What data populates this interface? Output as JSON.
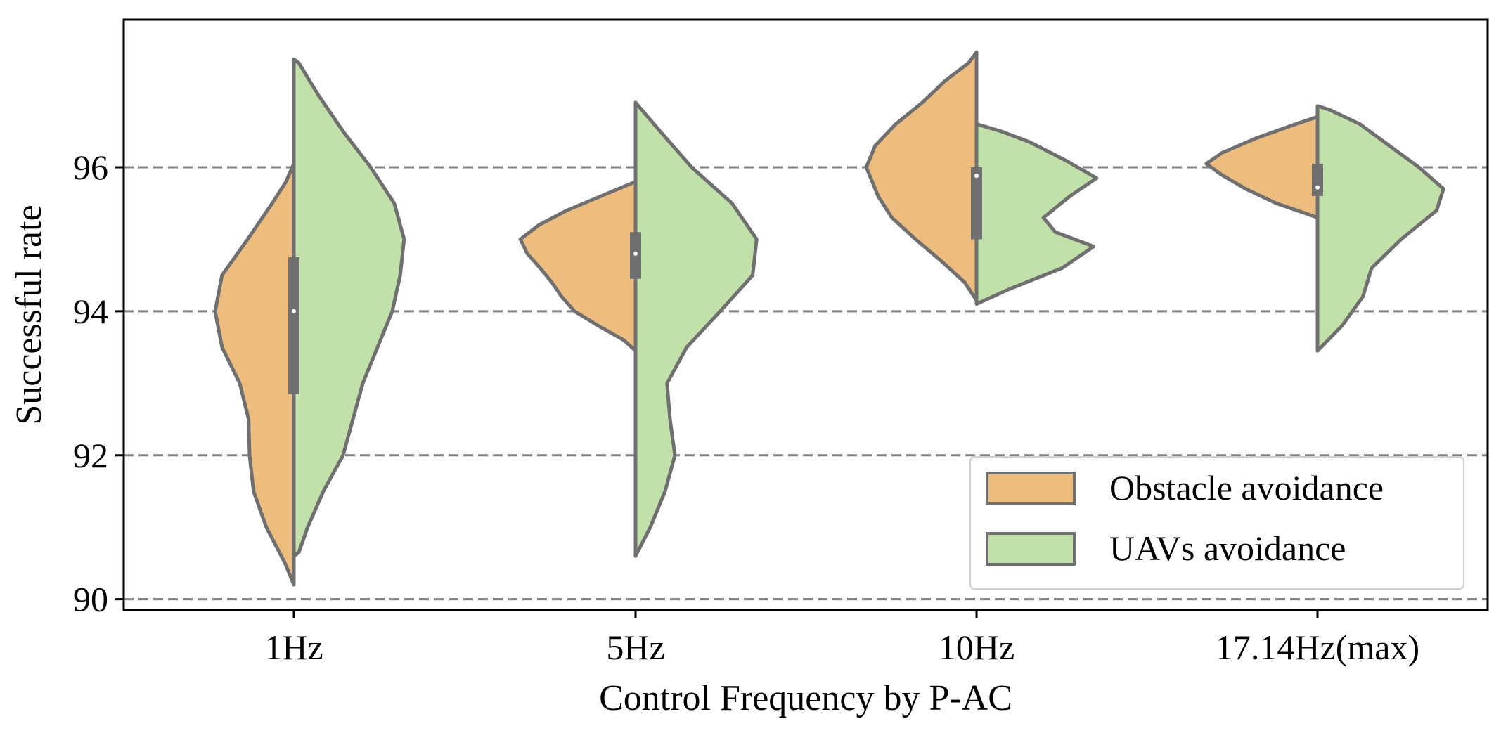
{
  "chart_data": {
    "type": "violin",
    "split": true,
    "title": "",
    "xlabel": "Control Frequency by P-AC",
    "ylabel": "Successful rate",
    "ylim": [
      89.85,
      98.05
    ],
    "yticks": [
      90,
      92,
      94,
      96
    ],
    "grid": "y-dashed",
    "categories": [
      "1Hz",
      "5Hz",
      "10Hz",
      "17.14Hz(max)"
    ],
    "series": [
      {
        "name": "Obstacle avoidance",
        "color": "#EDBD80",
        "side": "left",
        "violins": [
          {
            "min": 90.2,
            "max": 96.05,
            "density": [
              [
                90.2,
                0.0
              ],
              [
                90.5,
                0.09
              ],
              [
                91.0,
                0.28
              ],
              [
                91.5,
                0.41
              ],
              [
                92.0,
                0.45
              ],
              [
                92.5,
                0.46
              ],
              [
                93.0,
                0.55
              ],
              [
                93.5,
                0.73
              ],
              [
                94.0,
                0.8
              ],
              [
                94.5,
                0.73
              ],
              [
                95.0,
                0.47
              ],
              [
                95.5,
                0.22
              ],
              [
                95.8,
                0.08
              ],
              [
                96.05,
                0.0
              ]
            ]
          },
          {
            "min": 93.45,
            "max": 95.8,
            "density": [
              [
                93.45,
                0.0
              ],
              [
                93.6,
                0.12
              ],
              [
                93.8,
                0.38
              ],
              [
                94.0,
                0.62
              ],
              [
                94.2,
                0.75
              ],
              [
                94.4,
                0.85
              ],
              [
                94.6,
                0.97
              ],
              [
                94.8,
                1.1
              ],
              [
                95.0,
                1.17
              ],
              [
                95.2,
                0.98
              ],
              [
                95.4,
                0.7
              ],
              [
                95.6,
                0.35
              ],
              [
                95.8,
                0.0
              ]
            ]
          },
          {
            "min": 94.15,
            "max": 97.6,
            "density": [
              [
                94.15,
                0.0
              ],
              [
                94.4,
                0.12
              ],
              [
                94.7,
                0.36
              ],
              [
                95.0,
                0.62
              ],
              [
                95.3,
                0.86
              ],
              [
                95.6,
                1.0
              ],
              [
                96.0,
                1.12
              ],
              [
                96.3,
                1.03
              ],
              [
                96.6,
                0.82
              ],
              [
                96.9,
                0.55
              ],
              [
                97.2,
                0.32
              ],
              [
                97.45,
                0.08
              ],
              [
                97.6,
                0.0
              ]
            ]
          },
          {
            "min": 95.3,
            "max": 96.7,
            "density": [
              [
                95.3,
                0.0
              ],
              [
                95.35,
                0.1
              ],
              [
                95.5,
                0.42
              ],
              [
                95.7,
                0.73
              ],
              [
                95.9,
                0.98
              ],
              [
                96.05,
                1.13
              ],
              [
                96.2,
                0.97
              ],
              [
                96.4,
                0.63
              ],
              [
                96.6,
                0.22
              ],
              [
                96.7,
                0.0
              ]
            ]
          }
        ]
      },
      {
        "name": "UAVs avoidance",
        "color": "#C2E0A9",
        "side": "right",
        "violins": [
          {
            "min": 90.6,
            "max": 97.5,
            "density": [
              [
                90.6,
                0.0
              ],
              [
                90.65,
                0.05
              ],
              [
                91.0,
                0.14
              ],
              [
                91.5,
                0.3
              ],
              [
                92.0,
                0.5
              ],
              [
                92.5,
                0.6
              ],
              [
                93.0,
                0.7
              ],
              [
                93.5,
                0.85
              ],
              [
                94.0,
                1.0
              ],
              [
                94.5,
                1.08
              ],
              [
                95.0,
                1.12
              ],
              [
                95.5,
                1.02
              ],
              [
                96.0,
                0.78
              ],
              [
                96.5,
                0.5
              ],
              [
                97.0,
                0.25
              ],
              [
                97.45,
                0.05
              ],
              [
                97.5,
                0.0
              ]
            ]
          },
          {
            "min": 90.6,
            "max": 96.9,
            "density": [
              [
                90.6,
                0.0
              ],
              [
                91.0,
                0.15
              ],
              [
                91.5,
                0.3
              ],
              [
                92.0,
                0.4
              ],
              [
                92.5,
                0.35
              ],
              [
                93.0,
                0.32
              ],
              [
                93.5,
                0.52
              ],
              [
                94.0,
                0.86
              ],
              [
                94.5,
                1.19
              ],
              [
                95.0,
                1.23
              ],
              [
                95.5,
                0.98
              ],
              [
                96.0,
                0.57
              ],
              [
                96.5,
                0.25
              ],
              [
                96.85,
                0.03
              ],
              [
                96.9,
                0.0
              ]
            ]
          },
          {
            "min": 94.1,
            "max": 96.6,
            "density": [
              [
                94.1,
                0.0
              ],
              [
                94.3,
                0.32
              ],
              [
                94.6,
                0.87
              ],
              [
                94.9,
                1.19
              ],
              [
                95.1,
                0.8
              ],
              [
                95.3,
                0.68
              ],
              [
                95.6,
                0.95
              ],
              [
                95.85,
                1.22
              ],
              [
                96.1,
                0.9
              ],
              [
                96.35,
                0.54
              ],
              [
                96.5,
                0.25
              ],
              [
                96.6,
                0.0
              ]
            ]
          },
          {
            "min": 93.45,
            "max": 96.85,
            "density": [
              [
                93.45,
                0.0
              ],
              [
                93.8,
                0.25
              ],
              [
                94.2,
                0.46
              ],
              [
                94.6,
                0.55
              ],
              [
                95.0,
                0.85
              ],
              [
                95.4,
                1.21
              ],
              [
                95.7,
                1.28
              ],
              [
                96.0,
                1.03
              ],
              [
                96.3,
                0.73
              ],
              [
                96.6,
                0.43
              ],
              [
                96.8,
                0.12
              ],
              [
                96.85,
                0.0
              ]
            ]
          }
        ]
      }
    ],
    "inner_box": [
      {
        "q1": 92.85,
        "median": 94.0,
        "q3": 94.75
      },
      {
        "q1": 94.45,
        "median": 94.8,
        "q3": 95.1
      },
      {
        "q1": 95.0,
        "median": 95.88,
        "q3": 96.0
      },
      {
        "q1": 95.6,
        "median": 95.72,
        "q3": 96.05
      }
    ],
    "legend": {
      "position": "lower-right",
      "entries": [
        "Obstacle avoidance",
        "UAVs avoidance"
      ]
    },
    "outline_color": "#6F6F6F",
    "grid_color": "#808080"
  }
}
